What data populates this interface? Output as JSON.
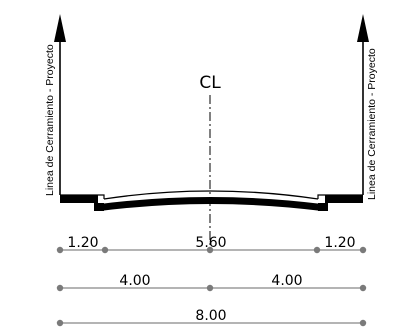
{
  "diagram": {
    "centerline_label": "CL",
    "left_boundary_label": "Linea de Cerramiento - Proyecto",
    "right_boundary_label": "Linea de Cerramiento - Proyecto",
    "dimension_rows": [
      {
        "name": "segments",
        "labels": [
          "1.20",
          "5.60",
          "1.20"
        ]
      },
      {
        "name": "halves",
        "labels": [
          "4.00",
          "4.00"
        ]
      },
      {
        "name": "total",
        "labels": [
          "8.00"
        ]
      }
    ]
  }
}
